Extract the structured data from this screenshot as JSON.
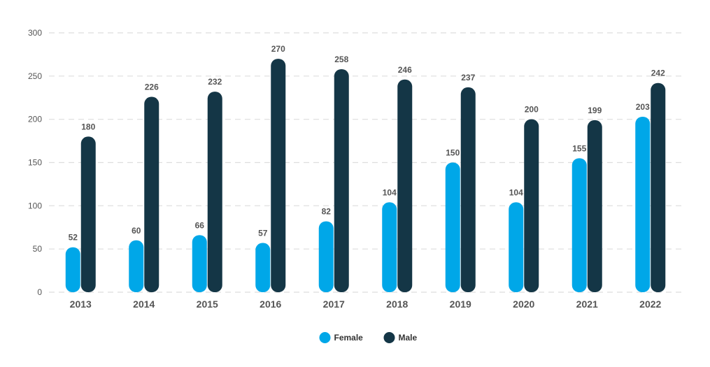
{
  "chart_data": {
    "type": "bar",
    "title": "",
    "xlabel": "",
    "ylabel": "",
    "ylim": [
      0,
      300
    ],
    "yticks": [
      0,
      50,
      100,
      150,
      200,
      250,
      300
    ],
    "grid": true,
    "legend_position": "bottom-center",
    "categories": [
      "2013",
      "2014",
      "2015",
      "2016",
      "2017",
      "2018",
      "2019",
      "2020",
      "2021",
      "2022"
    ],
    "series": [
      {
        "name": "Female",
        "color": "#00a7e8",
        "values": [
          52,
          60,
          66,
          57,
          82,
          104,
          150,
          104,
          155,
          203
        ]
      },
      {
        "name": "Male",
        "color": "#143646",
        "values": [
          180,
          226,
          232,
          270,
          258,
          246,
          237,
          200,
          199,
          242
        ]
      }
    ]
  }
}
